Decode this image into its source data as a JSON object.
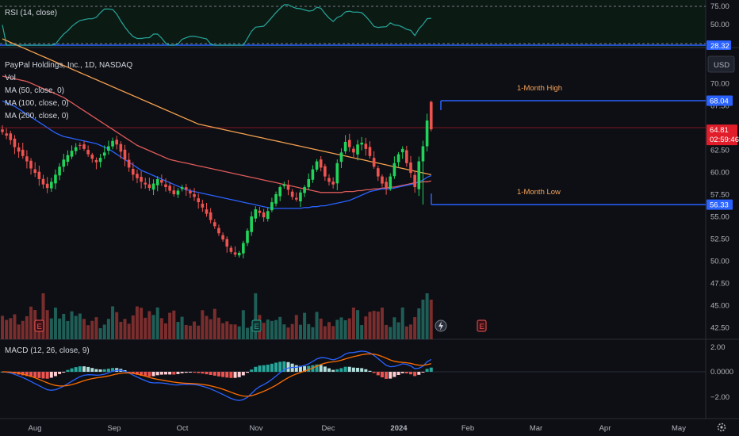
{
  "chart_data": {
    "type": "candlestick",
    "symbol_title": "PayPal Holdings, Inc., 1D, NASDAQ",
    "currency": "USD",
    "indicators": {
      "vol": "Vol",
      "ma50": "MA (50, close, 0)",
      "ma100": "MA (100, close, 0)",
      "ma200": "MA (200, close, 0)",
      "rsi": "RSI (14, close)",
      "macd": "MACD (12, 26, close, 9)"
    },
    "price_axis": {
      "ticks": [
        "70.00",
        "67.50",
        "62.50",
        "60.00",
        "57.50",
        "55.00",
        "52.50",
        "50.00",
        "47.50",
        "45.00",
        "42.50"
      ],
      "values": [
        70,
        67.5,
        62.5,
        60,
        57.5,
        55,
        52.5,
        50,
        47.5,
        45,
        42.5
      ]
    },
    "rsi_axis": {
      "ticks": [
        "75.00",
        "50.00"
      ],
      "values": [
        75,
        50
      ],
      "current": "28.32"
    },
    "macd_axis": {
      "ticks": [
        "2.00",
        "0.0000",
        "−2.00"
      ],
      "values": [
        2,
        0,
        -2
      ]
    },
    "x_axis": {
      "labels": [
        "Aug",
        "Sep",
        "Oct",
        "Nov",
        "Dec",
        "2024",
        "Feb",
        "Mar",
        "Apr",
        "May"
      ]
    },
    "current_price": "64.81",
    "countdown": "02:59:46",
    "high_tag": "68.04",
    "low_tag": "56.33",
    "annotations": {
      "high": "1-Month High",
      "low": "1-Month Low",
      "high_value": 68.04,
      "low_value": 56.33
    },
    "closes": [
      64.5,
      64.1,
      63.6,
      62.8,
      62.3,
      61.8,
      61.2,
      60.4,
      59.9,
      59.2,
      58.6,
      58.2,
      58.9,
      59.7,
      60.6,
      61.4,
      61.9,
      62.4,
      62.8,
      63.0,
      62.6,
      62.0,
      61.5,
      61.1,
      61.6,
      62.2,
      62.9,
      63.5,
      63.1,
      62.3,
      61.4,
      60.5,
      59.7,
      59.3,
      58.9,
      58.6,
      58.2,
      58.7,
      59.2,
      58.8,
      58.3,
      57.9,
      57.5,
      57.9,
      58.3,
      58.0,
      57.6,
      57.2,
      56.6,
      56.0,
      55.3,
      54.6,
      53.9,
      53.1,
      52.4,
      51.6,
      51.0,
      50.7,
      50.9,
      52.0,
      53.4,
      55.0,
      55.8,
      55.4,
      54.9,
      55.6,
      56.6,
      57.5,
      58.3,
      58.6,
      58.0,
      57.2,
      56.9,
      57.7,
      58.3,
      59.2,
      60.3,
      61.2,
      60.5,
      59.5,
      58.9,
      58.6,
      61.0,
      62.2,
      63.4,
      62.8,
      62.2,
      63.1,
      63.3,
      62.6,
      61.8,
      60.6,
      59.5,
      58.7,
      58.2,
      59.5,
      61.0,
      62.0,
      62.6,
      61.0,
      59.9,
      58.3,
      61.2,
      62.9,
      65.8,
      64.81
    ],
    "ma50": [
      68.0,
      67.8,
      67.6,
      67.4,
      67.1,
      66.8,
      66.5,
      66.2,
      65.9,
      65.6,
      65.3,
      65.0,
      64.7,
      64.4,
      64.2,
      64.0,
      63.9,
      63.8,
      63.7,
      63.6,
      63.5,
      63.4,
      63.3,
      63.2,
      63.0,
      62.8,
      62.6,
      62.3,
      62.0,
      61.7,
      61.4,
      61.1,
      60.8,
      60.5,
      60.2,
      60.0,
      59.8,
      59.6,
      59.4,
      59.2,
      59.0,
      58.8,
      58.6,
      58.4,
      58.2,
      58.0,
      57.9,
      57.8,
      57.7,
      57.6,
      57.5,
      57.4,
      57.3,
      57.2,
      57.1,
      57.0,
      56.9,
      56.8,
      56.7,
      56.6,
      56.5,
      56.4,
      56.3,
      56.2,
      56.1,
      56.0,
      55.9,
      55.9,
      55.9,
      55.9,
      55.9,
      55.9,
      55.9,
      55.9,
      56.0,
      56.0,
      56.1,
      56.1,
      56.2,
      56.2,
      56.3,
      56.4,
      56.5,
      56.6,
      56.7,
      56.8,
      57.0,
      57.2,
      57.4,
      57.6,
      57.8,
      57.9,
      58.0,
      58.1,
      58.1,
      58.1,
      58.2,
      58.3,
      58.4,
      58.5,
      58.6,
      58.7,
      58.9,
      59.1,
      59.4,
      59.6
    ],
    "ma100": [
      70.8,
      70.7,
      70.6,
      70.5,
      70.4,
      70.3,
      70.2,
      70.0,
      69.8,
      69.6,
      69.4,
      69.2,
      69.0,
      68.8,
      68.6,
      68.4,
      68.1,
      67.8,
      67.5,
      67.2,
      66.9,
      66.6,
      66.3,
      66.0,
      65.7,
      65.4,
      65.1,
      64.8,
      64.5,
      64.2,
      63.9,
      63.6,
      63.3,
      63.0,
      62.8,
      62.6,
      62.4,
      62.2,
      62.0,
      61.8,
      61.6,
      61.4,
      61.3,
      61.2,
      61.1,
      61.0,
      60.9,
      60.8,
      60.7,
      60.6,
      60.5,
      60.4,
      60.3,
      60.2,
      60.1,
      60.0,
      59.9,
      59.8,
      59.7,
      59.6,
      59.5,
      59.4,
      59.3,
      59.2,
      59.1,
      59.0,
      58.9,
      58.8,
      58.7,
      58.6,
      58.5,
      58.4,
      58.3,
      58.2,
      58.1,
      58.0,
      57.9,
      57.8,
      57.7,
      57.7,
      57.7,
      57.7,
      57.7,
      57.7,
      57.8,
      57.8,
      57.8,
      57.9,
      57.9,
      58.0,
      58.0,
      58.1,
      58.1,
      58.2,
      58.2,
      58.3,
      58.3,
      58.4,
      58.5,
      58.6,
      58.7,
      58.8,
      58.8,
      58.9,
      58.9,
      59.0
    ],
    "ma200": [
      75.0,
      74.8,
      74.6,
      74.4,
      74.2,
      74.0,
      73.8,
      73.6,
      73.4,
      73.2,
      73.0,
      72.8,
      72.6,
      72.4,
      72.2,
      72.0,
      71.8,
      71.6,
      71.4,
      71.2,
      71.0,
      70.8,
      70.6,
      70.4,
      70.2,
      70.0,
      69.8,
      69.6,
      69.4,
      69.2,
      69.0,
      68.8,
      68.6,
      68.4,
      68.2,
      68.0,
      67.8,
      67.6,
      67.4,
      67.2,
      67.0,
      66.8,
      66.6,
      66.4,
      66.2,
      66.0,
      65.8,
      65.6,
      65.4,
      65.3,
      65.2,
      65.1,
      65.0,
      64.9,
      64.8,
      64.7,
      64.6,
      64.5,
      64.4,
      64.3,
      64.2,
      64.1,
      64.0,
      63.9,
      63.8,
      63.7,
      63.6,
      63.5,
      63.4,
      63.3,
      63.2,
      63.1,
      63.0,
      62.9,
      62.8,
      62.7,
      62.6,
      62.5,
      62.4,
      62.3,
      62.2,
      62.1,
      62.0,
      61.9,
      61.8,
      61.7,
      61.6,
      61.5,
      61.4,
      61.3,
      61.2,
      61.1,
      61.0,
      60.9,
      60.8,
      60.7,
      60.6,
      60.5,
      60.4,
      60.3,
      60.2,
      60.1,
      60.0,
      59.9,
      59.8,
      59.7
    ]
  },
  "colors": {
    "up": "#26a69a",
    "up_bright": "#22d35b",
    "down": "#ef5350",
    "ma50": "#2962ff",
    "ma100": "#e05a5a",
    "ma200": "#f5a04f",
    "rsi_line": "#26a69a",
    "level_line": "#2962ff",
    "price_tag": "#e11d2a",
    "axis_text": "#b2b5be"
  }
}
